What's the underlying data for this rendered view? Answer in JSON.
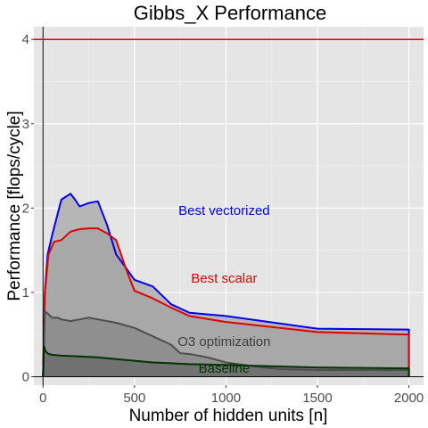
{
  "chart_data": {
    "type": "area",
    "title": "Gibbs_X Performance",
    "xlabel": "Number of hidden units [n]",
    "ylabel": "Performance [flops/cycle]",
    "xlim": [
      -50,
      2080
    ],
    "ylim": [
      -0.1,
      4.15
    ],
    "xticks": [
      0,
      500,
      1000,
      1500,
      2000
    ],
    "yticks": [
      0,
      1,
      2,
      3,
      4
    ],
    "grid": true,
    "background": "#e5e5e5",
    "peak_line": {
      "y": 4,
      "color": "#e00000"
    },
    "series": [
      {
        "name": "Best vectorized",
        "color": "#0000ee",
        "fill": "#b0b0b0",
        "x": [
          0,
          10,
          25,
          50,
          100,
          150,
          175,
          200,
          250,
          300,
          350,
          400,
          450,
          500,
          600,
          700,
          800,
          1000,
          1500,
          2000,
          2000
        ],
        "y": [
          0,
          1.0,
          1.45,
          1.68,
          2.1,
          2.17,
          2.1,
          2.02,
          2.06,
          2.08,
          1.8,
          1.45,
          1.3,
          1.15,
          1.07,
          0.86,
          0.76,
          0.72,
          0.57,
          0.56,
          0
        ]
      },
      {
        "name": "Best scalar",
        "color": "#dd0000",
        "fill": "#a6a6a6",
        "x": [
          0,
          10,
          30,
          60,
          100,
          150,
          200,
          250,
          300,
          350,
          400,
          450,
          500,
          600,
          700,
          800,
          1000,
          1500,
          2000,
          2000
        ],
        "y": [
          0,
          1.0,
          1.45,
          1.6,
          1.62,
          1.72,
          1.75,
          1.76,
          1.76,
          1.7,
          1.62,
          1.3,
          1.02,
          0.93,
          0.82,
          0.72,
          0.65,
          0.53,
          0.5,
          0
        ]
      },
      {
        "name": "O3 optimization",
        "color": "#4d4d4d",
        "fill": "#8c8c8c",
        "x": [
          0,
          10,
          20,
          30,
          50,
          80,
          100,
          150,
          200,
          250,
          300,
          400,
          500,
          600,
          700,
          750,
          800,
          850,
          900,
          950,
          1000,
          1100,
          1200,
          1300,
          1500,
          2000,
          2000
        ],
        "y": [
          0,
          0.77,
          0.76,
          0.74,
          0.7,
          0.7,
          0.68,
          0.66,
          0.68,
          0.7,
          0.68,
          0.64,
          0.58,
          0.48,
          0.38,
          0.28,
          0.27,
          0.25,
          0.23,
          0.2,
          0.17,
          0.14,
          0.11,
          0.09,
          0.08,
          0.08,
          0
        ]
      },
      {
        "name": "Baseline",
        "color": "#003300",
        "fill": "#6e6e6e",
        "x": [
          0,
          5,
          15,
          30,
          50,
          100,
          200,
          300,
          400,
          500,
          600,
          700,
          800,
          1000,
          1500,
          2000,
          2000
        ],
        "y": [
          0,
          0.36,
          0.3,
          0.27,
          0.26,
          0.25,
          0.24,
          0.23,
          0.21,
          0.19,
          0.17,
          0.16,
          0.15,
          0.14,
          0.11,
          0.1,
          0
        ]
      }
    ],
    "annotations": [
      {
        "text": "Best vectorized",
        "x": 990,
        "y": 1.97,
        "color": "#0000ee"
      },
      {
        "text": "Best scalar",
        "x": 990,
        "y": 1.17,
        "color": "#dd0000"
      },
      {
        "text": "O3 optimization",
        "x": 990,
        "y": 0.42,
        "color": "#404040"
      },
      {
        "text": "Baseline",
        "x": 990,
        "y": 0.1,
        "color": "#003300"
      }
    ]
  }
}
